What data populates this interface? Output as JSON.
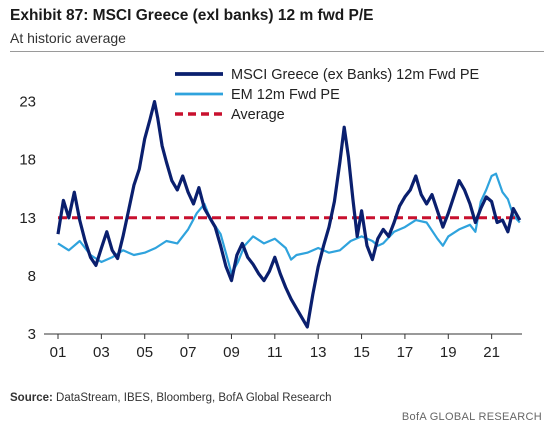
{
  "header": {
    "title": "Exhibit 87: MSCI Greece (exl banks) 12  m fwd P/E",
    "subtitle": "At historic average"
  },
  "footer": {
    "source_label": "Source:",
    "source_text": " DataStream, IBES, Bloomberg, BofA Global Research",
    "brand": "BofA GLOBAL RESEARCH"
  },
  "colors": {
    "greece": "#0a1f6e",
    "em": "#2fa3dd",
    "average": "#c8102e",
    "axis": "#333333"
  },
  "chart_data": {
    "type": "line",
    "title": "",
    "xlabel": "",
    "ylabel": "",
    "xlim": [
      2001.0,
      2022.4
    ],
    "ylim": [
      3,
      24
    ],
    "yticks": [
      3,
      8,
      13,
      18,
      23
    ],
    "xticks": [
      {
        "year": 2001,
        "label": "01"
      },
      {
        "year": 2003,
        "label": "03"
      },
      {
        "year": 2005,
        "label": "05"
      },
      {
        "year": 2007,
        "label": "07"
      },
      {
        "year": 2009,
        "label": "09"
      },
      {
        "year": 2011,
        "label": "11"
      },
      {
        "year": 2013,
        "label": "13"
      },
      {
        "year": 2015,
        "label": "15"
      },
      {
        "year": 2017,
        "label": "17"
      },
      {
        "year": 2019,
        "label": "19"
      },
      {
        "year": 2021,
        "label": "21"
      }
    ],
    "legend_position": "top-center",
    "series": [
      {
        "name": "MSCI Greece (ex Banks) 12m Fwd PE",
        "style": "solid-thick",
        "points": [
          [
            2001.0,
            11.6
          ],
          [
            2001.25,
            14.5
          ],
          [
            2001.5,
            13.0
          ],
          [
            2001.75,
            15.2
          ],
          [
            2002.0,
            12.8
          ],
          [
            2002.25,
            11.0
          ],
          [
            2002.5,
            9.6
          ],
          [
            2002.75,
            8.9
          ],
          [
            2003.0,
            10.4
          ],
          [
            2003.25,
            11.8
          ],
          [
            2003.5,
            10.2
          ],
          [
            2003.75,
            9.5
          ],
          [
            2004.0,
            11.4
          ],
          [
            2004.25,
            13.6
          ],
          [
            2004.5,
            15.8
          ],
          [
            2004.75,
            17.2
          ],
          [
            2005.0,
            19.8
          ],
          [
            2005.25,
            21.5
          ],
          [
            2005.45,
            23.0
          ],
          [
            2005.6,
            21.6
          ],
          [
            2005.8,
            19.2
          ],
          [
            2006.0,
            17.8
          ],
          [
            2006.25,
            16.2
          ],
          [
            2006.5,
            15.4
          ],
          [
            2006.75,
            16.6
          ],
          [
            2007.0,
            15.2
          ],
          [
            2007.25,
            14.2
          ],
          [
            2007.5,
            15.6
          ],
          [
            2007.75,
            13.8
          ],
          [
            2008.0,
            13.0
          ],
          [
            2008.25,
            12.2
          ],
          [
            2008.5,
            10.6
          ],
          [
            2008.75,
            8.8
          ],
          [
            2009.0,
            7.6
          ],
          [
            2009.25,
            9.8
          ],
          [
            2009.5,
            10.8
          ],
          [
            2009.75,
            9.6
          ],
          [
            2010.0,
            9.0
          ],
          [
            2010.25,
            8.2
          ],
          [
            2010.5,
            7.6
          ],
          [
            2010.75,
            8.4
          ],
          [
            2011.0,
            9.6
          ],
          [
            2011.25,
            8.2
          ],
          [
            2011.5,
            7.0
          ],
          [
            2011.75,
            6.0
          ],
          [
            2012.0,
            5.2
          ],
          [
            2012.25,
            4.4
          ],
          [
            2012.5,
            3.6
          ],
          [
            2012.75,
            6.4
          ],
          [
            2013.0,
            8.8
          ],
          [
            2013.25,
            10.6
          ],
          [
            2013.5,
            12.2
          ],
          [
            2013.75,
            14.4
          ],
          [
            2014.0,
            17.8
          ],
          [
            2014.2,
            20.8
          ],
          [
            2014.4,
            18.2
          ],
          [
            2014.6,
            14.6
          ],
          [
            2014.8,
            11.4
          ],
          [
            2015.0,
            13.6
          ],
          [
            2015.25,
            10.6
          ],
          [
            2015.5,
            9.4
          ],
          [
            2015.75,
            11.2
          ],
          [
            2016.0,
            12.0
          ],
          [
            2016.25,
            11.4
          ],
          [
            2016.5,
            12.6
          ],
          [
            2016.75,
            14.0
          ],
          [
            2017.0,
            14.8
          ],
          [
            2017.25,
            15.4
          ],
          [
            2017.5,
            16.6
          ],
          [
            2017.75,
            15.0
          ],
          [
            2018.0,
            14.2
          ],
          [
            2018.25,
            15.0
          ],
          [
            2018.5,
            13.6
          ],
          [
            2018.75,
            12.2
          ],
          [
            2019.0,
            13.4
          ],
          [
            2019.25,
            14.8
          ],
          [
            2019.5,
            16.2
          ],
          [
            2019.75,
            15.4
          ],
          [
            2020.0,
            14.2
          ],
          [
            2020.25,
            12.6
          ],
          [
            2020.5,
            13.8
          ],
          [
            2020.75,
            14.8
          ],
          [
            2021.0,
            14.4
          ],
          [
            2021.25,
            12.6
          ],
          [
            2021.5,
            12.8
          ],
          [
            2021.75,
            11.8
          ],
          [
            2022.0,
            13.8
          ],
          [
            2022.3,
            12.8
          ]
        ]
      },
      {
        "name": "EM 12m Fwd PE",
        "style": "solid",
        "points": [
          [
            2001.0,
            10.8
          ],
          [
            2001.5,
            10.2
          ],
          [
            2002.0,
            11.0
          ],
          [
            2002.5,
            9.8
          ],
          [
            2003.0,
            9.2
          ],
          [
            2003.5,
            9.6
          ],
          [
            2004.0,
            10.2
          ],
          [
            2004.5,
            9.8
          ],
          [
            2005.0,
            10.0
          ],
          [
            2005.5,
            10.4
          ],
          [
            2006.0,
            11.0
          ],
          [
            2006.5,
            10.8
          ],
          [
            2007.0,
            12.0
          ],
          [
            2007.4,
            13.4
          ],
          [
            2007.75,
            14.2
          ],
          [
            2008.0,
            13.0
          ],
          [
            2008.5,
            11.6
          ],
          [
            2008.8,
            9.6
          ],
          [
            2009.0,
            8.2
          ],
          [
            2009.3,
            9.2
          ],
          [
            2009.6,
            10.6
          ],
          [
            2010.0,
            11.4
          ],
          [
            2010.5,
            10.8
          ],
          [
            2011.0,
            11.2
          ],
          [
            2011.5,
            10.4
          ],
          [
            2011.75,
            9.4
          ],
          [
            2012.0,
            9.8
          ],
          [
            2012.5,
            10.0
          ],
          [
            2013.0,
            10.4
          ],
          [
            2013.5,
            10.0
          ],
          [
            2014.0,
            10.2
          ],
          [
            2014.5,
            11.0
          ],
          [
            2015.0,
            11.4
          ],
          [
            2015.5,
            11.0
          ],
          [
            2015.75,
            10.6
          ],
          [
            2016.0,
            10.8
          ],
          [
            2016.5,
            11.8
          ],
          [
            2017.0,
            12.2
          ],
          [
            2017.5,
            12.8
          ],
          [
            2018.0,
            12.6
          ],
          [
            2018.5,
            11.2
          ],
          [
            2018.75,
            10.6
          ],
          [
            2019.0,
            11.4
          ],
          [
            2019.5,
            12.0
          ],
          [
            2020.0,
            12.4
          ],
          [
            2020.25,
            11.8
          ],
          [
            2020.5,
            14.4
          ],
          [
            2020.75,
            15.4
          ],
          [
            2021.0,
            16.6
          ],
          [
            2021.2,
            16.8
          ],
          [
            2021.5,
            15.2
          ],
          [
            2021.75,
            14.6
          ],
          [
            2022.0,
            13.2
          ],
          [
            2022.3,
            12.6
          ]
        ]
      },
      {
        "name": "Average",
        "style": "dashed",
        "points": [
          [
            2001.0,
            13.0
          ],
          [
            2022.3,
            13.0
          ]
        ]
      }
    ]
  }
}
